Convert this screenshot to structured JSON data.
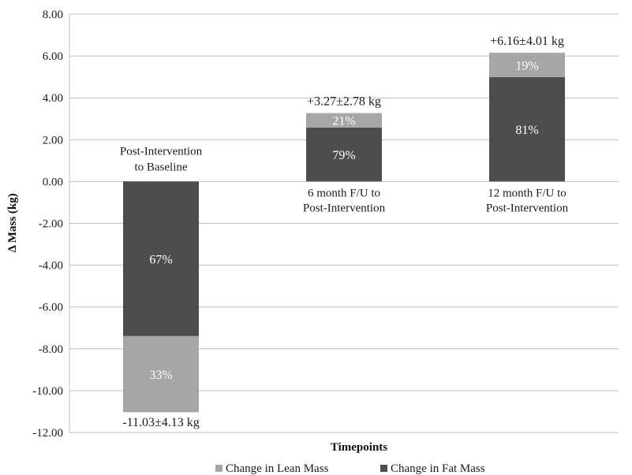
{
  "chart_data": {
    "type": "bar",
    "stacked": true,
    "title": "",
    "xlabel": "Timepoints",
    "ylabel": "Δ Mass (kg)",
    "ylim": [
      -12,
      8
    ],
    "yticks": [
      "8.00",
      "6.00",
      "4.00",
      "2.00",
      "0.00",
      "-2.00",
      "-4.00",
      "-6.00",
      "-8.00",
      "-10.00",
      "-12.00"
    ],
    "grid": true,
    "legend_position": "bottom",
    "categories": [
      {
        "lines": [
          "Post-Intervention",
          "to Baseline"
        ],
        "label_side": "above"
      },
      {
        "lines": [
          "6 month F/U to",
          "Post-Intervention"
        ],
        "label_side": "below"
      },
      {
        "lines": [
          "12 month F/U to",
          "Post-Intervention"
        ],
        "label_side": "below"
      }
    ],
    "series": [
      {
        "name": "Change in Lean Mass",
        "color": "#a6a6a6",
        "values": [
          -3.64,
          0.69,
          1.17
        ],
        "labels": [
          "33%",
          "21%",
          "19%"
        ]
      },
      {
        "name": "Change in Fat Mass",
        "color": "#4d4d4d",
        "values": [
          -7.39,
          2.58,
          4.99
        ],
        "labels": [
          "67%",
          "79%",
          "81%"
        ]
      }
    ],
    "totals": [
      "-11.03±4.13 kg",
      "+3.27±2.78 kg",
      "+6.16±4.01 kg"
    ]
  }
}
